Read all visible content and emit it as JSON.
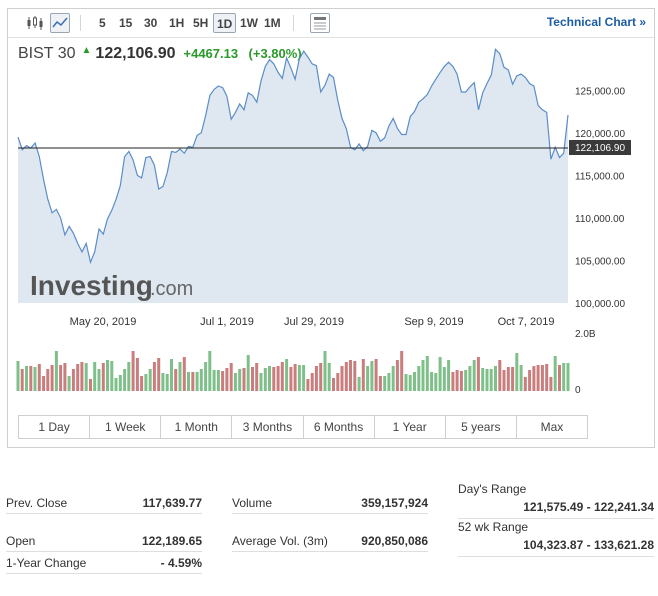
{
  "toolbar": {
    "timeframes": [
      "5",
      "15",
      "30",
      "1H",
      "5H",
      "1D",
      "1W",
      "1M"
    ],
    "active_timeframe": "1D",
    "technical_chart_label": "Technical Chart »"
  },
  "header": {
    "name": "BIST 30",
    "price": "122,106.90",
    "change": "+4467.13",
    "change_pct": "(+3.80%)"
  },
  "watermark": {
    "brand": "Investing",
    "suffix": ".com"
  },
  "chart_data": {
    "type": "area",
    "y_ticks": [
      "125,000.00",
      "120,000.00",
      "115,000.00",
      "110,000.00",
      "105,000.00",
      "100,000.00"
    ],
    "ylim": [
      100000,
      127500
    ],
    "x_labels": [
      "May 20, 2019",
      "Jul 1, 2019",
      "Jul 29, 2019",
      "Sep 9, 2019",
      "Oct 7, 2019"
    ],
    "last_price_label": "122,106.90",
    "last_price": 122106.9,
    "close": [
      119500,
      118000,
      118500,
      118200,
      118800,
      117200,
      114500,
      112200,
      110600,
      111000,
      110000,
      108000,
      109000,
      108200,
      107000,
      106000,
      107000,
      104800,
      106000,
      108700,
      108100,
      109900,
      110900,
      112200,
      113800,
      117200,
      117800,
      116800,
      115000,
      114700,
      117100,
      117200,
      116200,
      113400,
      113700,
      115300,
      117800,
      117700,
      118100,
      117600,
      118400,
      118300,
      119700,
      120000,
      122000,
      124400,
      125100,
      125500,
      125300,
      124300,
      121600,
      122400,
      123400,
      122700,
      124700,
      124400,
      123600,
      126100,
      127800,
      128600,
      128100,
      127100,
      126400,
      128800,
      127600,
      126300,
      128700,
      129600,
      128900,
      128100,
      127900,
      124800,
      125600,
      126900,
      126500,
      123800,
      121700,
      120500,
      118300,
      118000,
      118700,
      117900,
      118400,
      120300,
      120000,
      119000,
      119400,
      120800,
      121700,
      120500,
      119800,
      119800,
      121900,
      122500,
      123600,
      124000,
      124500,
      125500,
      126300,
      127100,
      127800,
      128300,
      127800,
      126900,
      124800,
      124800,
      125400,
      125900,
      122700,
      124700,
      125800,
      126800,
      129800,
      129300,
      127700,
      127400,
      125700,
      126700,
      126900,
      126500,
      125800,
      125500,
      123200,
      122700,
      122400,
      116900,
      118300,
      117100,
      117600,
      122107
    ],
    "volume_axis_labels": [
      "2.0B",
      "0"
    ]
  },
  "ranges": [
    "1 Day",
    "1 Week",
    "1 Month",
    "3 Months",
    "6 Months",
    "1 Year",
    "5 years",
    "Max"
  ],
  "stats": {
    "prev_close": {
      "label": "Prev. Close",
      "value": "117,639.77"
    },
    "volume": {
      "label": "Volume",
      "value": "359,157,924"
    },
    "days_range": {
      "label": "Day's Range",
      "value": "121,575.49 - 122,241.34"
    },
    "open": {
      "label": "Open",
      "value": "122,189.65"
    },
    "avg_vol": {
      "label": "Average Vol. (3m)",
      "value": "920,850,086"
    },
    "wk52_range": {
      "label": "52 wk Range",
      "value": "104,323.87 - 133,621.28"
    },
    "one_year_change": {
      "label": "1-Year Change",
      "value": "- 4.59%"
    }
  },
  "colors": {
    "up": "#7fbf8a",
    "down": "#c97d7d",
    "area_fill": "#dfe8f1",
    "area_line": "#5a8dc8",
    "accent": "#1b5ea6",
    "positive": "#2a9a2a"
  }
}
